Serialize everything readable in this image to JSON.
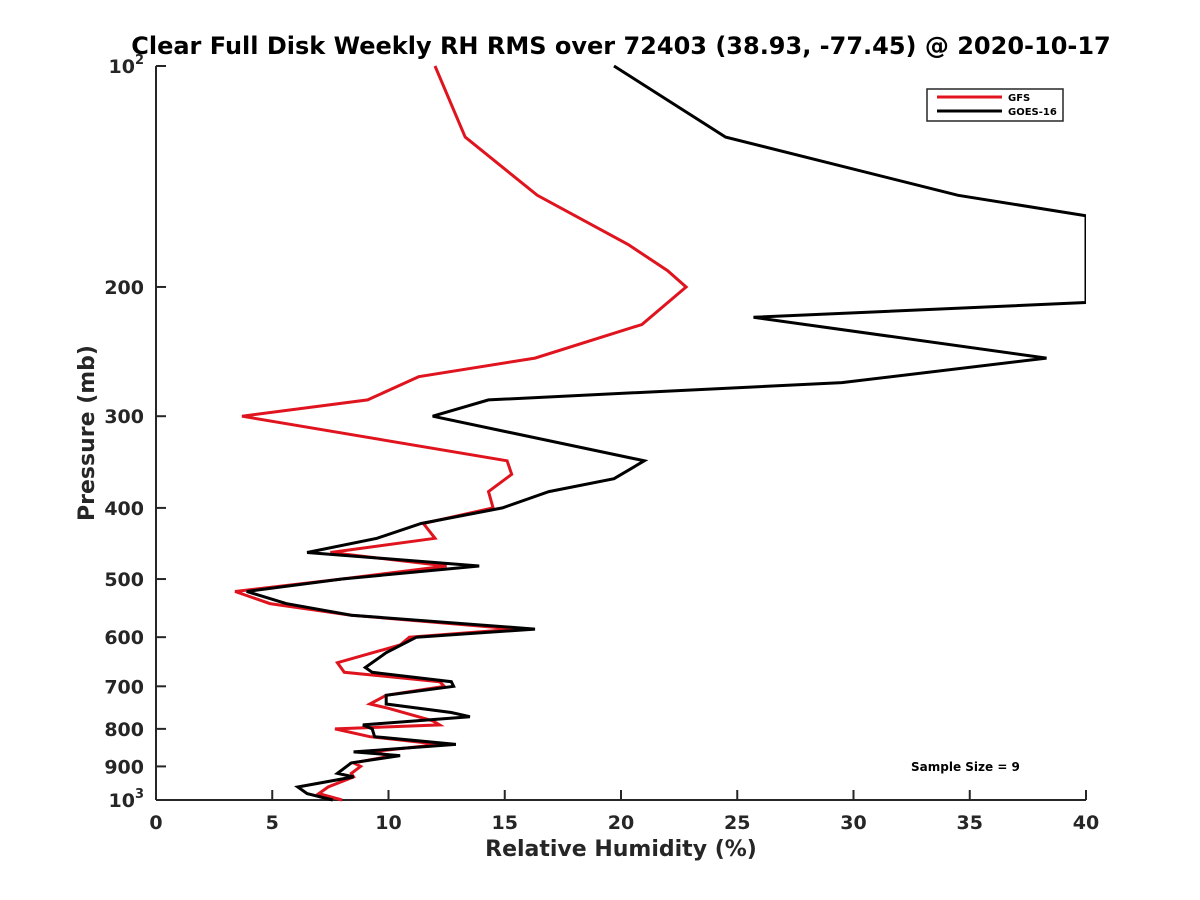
{
  "chart_data": {
    "type": "line",
    "title": "Clear Full Disk Weekly RH RMS over 72403 (38.93, -77.45) @ 2020-10-17",
    "xlabel": "Relative Humidity (%)",
    "ylabel": "Pressure (mb)",
    "xlim": [
      0,
      40
    ],
    "ylim": [
      100,
      1000
    ],
    "y_scale": "log",
    "y_reversed": true,
    "grid": false,
    "legend_position": "top-right",
    "x_ticks": [
      "0",
      "5",
      "10",
      "15",
      "20",
      "25",
      "30",
      "35",
      "40"
    ],
    "y_ticks": [
      {
        "value": 100,
        "base": "10",
        "exp": "2"
      },
      {
        "value": 200,
        "label": "200"
      },
      {
        "value": 300,
        "label": "300"
      },
      {
        "value": 400,
        "label": "400"
      },
      {
        "value": 500,
        "label": "500"
      },
      {
        "value": 600,
        "label": "600"
      },
      {
        "value": 700,
        "label": "700"
      },
      {
        "value": 800,
        "label": "800"
      },
      {
        "value": 900,
        "label": "900"
      },
      {
        "value": 1000,
        "base": "10",
        "exp": "3"
      }
    ],
    "annotation": "Sample Size = 9",
    "series": [
      {
        "name": "GFS",
        "color": "#e0141e",
        "points": [
          [
            12.0,
            100
          ],
          [
            13.3,
            125
          ],
          [
            16.4,
            150
          ],
          [
            20.3,
            175
          ],
          [
            22.0,
            190
          ],
          [
            22.8,
            200
          ],
          [
            20.9,
            225
          ],
          [
            16.3,
            250
          ],
          [
            11.3,
            265
          ],
          [
            9.1,
            285
          ],
          [
            3.7,
            300
          ],
          [
            15.1,
            345
          ],
          [
            15.3,
            360
          ],
          [
            14.3,
            380
          ],
          [
            14.5,
            400
          ],
          [
            11.5,
            420
          ],
          [
            12.0,
            440
          ],
          [
            7.5,
            460
          ],
          [
            12.5,
            480
          ],
          [
            8.0,
            500
          ],
          [
            3.4,
            520
          ],
          [
            4.9,
            540
          ],
          [
            8.4,
            560
          ],
          [
            15.5,
            585
          ],
          [
            10.9,
            600
          ],
          [
            10.5,
            615
          ],
          [
            7.8,
            650
          ],
          [
            8.1,
            670
          ],
          [
            12.2,
            690
          ],
          [
            12.4,
            700
          ],
          [
            9.9,
            720
          ],
          [
            9.2,
            740
          ],
          [
            10.0,
            750
          ],
          [
            11.9,
            780
          ],
          [
            12.2,
            790
          ],
          [
            7.7,
            800
          ],
          [
            9.2,
            820
          ],
          [
            12.2,
            840
          ],
          [
            9.2,
            860
          ],
          [
            10.2,
            870
          ],
          [
            8.5,
            890
          ],
          [
            8.8,
            900
          ],
          [
            8.4,
            920
          ],
          [
            8.5,
            930
          ],
          [
            7.4,
            960
          ],
          [
            7.0,
            980
          ],
          [
            8.0,
            1000
          ]
        ]
      },
      {
        "name": "GOES-16",
        "color": "#000000",
        "points": [
          [
            19.7,
            100
          ],
          [
            24.5,
            125
          ],
          [
            34.5,
            150
          ],
          [
            40.0,
            160
          ],
          [
            40.0,
            210
          ],
          [
            25.7,
            220
          ],
          [
            38.3,
            250
          ],
          [
            29.5,
            270
          ],
          [
            14.3,
            285
          ],
          [
            11.9,
            300
          ],
          [
            21.0,
            345
          ],
          [
            19.7,
            365
          ],
          [
            16.9,
            380
          ],
          [
            14.9,
            400
          ],
          [
            11.4,
            420
          ],
          [
            9.5,
            440
          ],
          [
            6.5,
            460
          ],
          [
            13.9,
            480
          ],
          [
            8.0,
            500
          ],
          [
            3.9,
            520
          ],
          [
            5.6,
            540
          ],
          [
            8.4,
            560
          ],
          [
            16.3,
            585
          ],
          [
            11.2,
            600
          ],
          [
            9.9,
            630
          ],
          [
            9.0,
            660
          ],
          [
            9.3,
            670
          ],
          [
            12.7,
            690
          ],
          [
            12.8,
            700
          ],
          [
            9.9,
            720
          ],
          [
            9.9,
            740
          ],
          [
            12.7,
            760
          ],
          [
            13.5,
            770
          ],
          [
            8.9,
            790
          ],
          [
            9.3,
            800
          ],
          [
            9.4,
            820
          ],
          [
            12.9,
            840
          ],
          [
            8.5,
            860
          ],
          [
            10.5,
            870
          ],
          [
            8.4,
            890
          ],
          [
            8.2,
            900
          ],
          [
            7.8,
            920
          ],
          [
            8.5,
            930
          ],
          [
            6.1,
            960
          ],
          [
            6.5,
            980
          ],
          [
            7.6,
            1000
          ]
        ]
      }
    ]
  }
}
